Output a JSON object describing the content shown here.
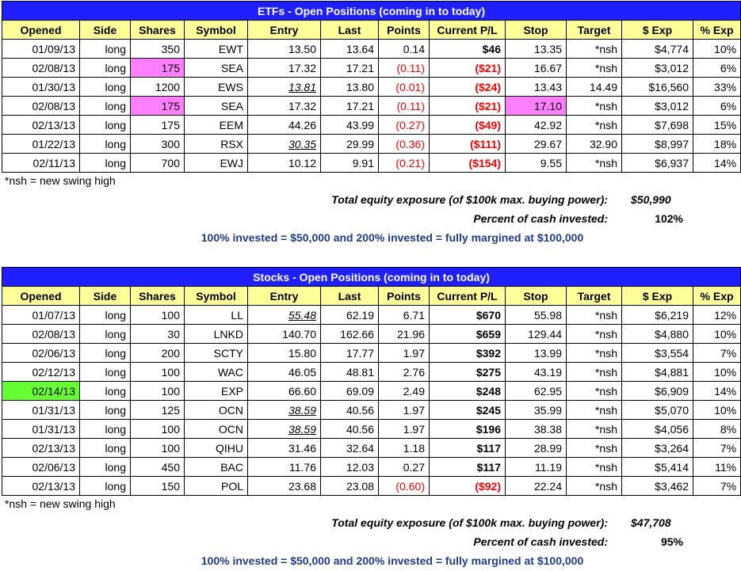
{
  "headers": [
    "Opened",
    "Side",
    "Shares",
    "Symbol",
    "Entry",
    "Last",
    "Points",
    "Current P/L",
    "Stop",
    "Target",
    "$ Exp",
    "% Exp"
  ],
  "etfs": {
    "title": "ETFs - Open Positions (coming in to today)",
    "rows": [
      [
        "01/09/13",
        "long",
        "350",
        "EWT",
        "13.50",
        "13.64",
        "0.14",
        "$46",
        "13.35",
        "*nsh",
        "$4,774",
        "10%"
      ],
      [
        "02/08/13",
        "long",
        "175",
        "SEA",
        "17.32",
        "17.21",
        "(0.11)",
        "($21)",
        "16.67",
        "*nsh",
        "$3,012",
        "6%"
      ],
      [
        "01/30/13",
        "long",
        "1200",
        "EWS",
        "13.81",
        "13.80",
        "(0.01)",
        "($24)",
        "13.43",
        "14.49",
        "$16,560",
        "33%"
      ],
      [
        "02/08/13",
        "long",
        "175",
        "SEA",
        "17.32",
        "17.21",
        "(0.11)",
        "($21)",
        "17.10",
        "*nsh",
        "$3,012",
        "6%"
      ],
      [
        "02/13/13",
        "long",
        "175",
        "EEM",
        "44.26",
        "43.99",
        "(0.27)",
        "($49)",
        "42.92",
        "*nsh",
        "$7,698",
        "15%"
      ],
      [
        "01/22/13",
        "long",
        "300",
        "RSX",
        "30.35",
        "29.99",
        "(0.36)",
        "($111)",
        "29.67",
        "32.90",
        "$8,997",
        "18%"
      ],
      [
        "02/11/13",
        "long",
        "700",
        "EWJ",
        "10.12",
        "9.91",
        "(0.21)",
        "($154)",
        "9.55",
        "*nsh",
        "$6,937",
        "14%"
      ]
    ],
    "note": "*nsh = new swing high",
    "exposure_label": "Total equity exposure (of $100k max. buying power):",
    "exposure_value": "$50,990",
    "cash_label": "Percent of cash invested:",
    "cash_value": "102%",
    "invested_note": "100% invested = $50,000 and 200% invested = fully margined at $100,000"
  },
  "stocks": {
    "title": "Stocks - Open Positions (coming in to today)",
    "rows": [
      [
        "01/07/13",
        "long",
        "100",
        "LL",
        "55.48",
        "62.19",
        "6.71",
        "$670",
        "55.98",
        "*nsh",
        "$6,219",
        "12%"
      ],
      [
        "02/08/13",
        "long",
        "30",
        "LNKD",
        "140.70",
        "162.66",
        "21.96",
        "$659",
        "129.44",
        "*nsh",
        "$4,880",
        "10%"
      ],
      [
        "02/06/13",
        "long",
        "200",
        "SCTY",
        "15.80",
        "17.77",
        "1.97",
        "$392",
        "13.99",
        "*nsh",
        "$3,554",
        "7%"
      ],
      [
        "02/12/13",
        "long",
        "100",
        "WAC",
        "46.05",
        "48.81",
        "2.76",
        "$275",
        "43.19",
        "*nsh",
        "$4,881",
        "10%"
      ],
      [
        "02/14/13",
        "long",
        "100",
        "EXP",
        "66.60",
        "69.09",
        "2.49",
        "$248",
        "62.95",
        "*nsh",
        "$6,909",
        "14%"
      ],
      [
        "01/31/13",
        "long",
        "125",
        "OCN",
        "38.59",
        "40.56",
        "1.97",
        "$245",
        "35.99",
        "*nsh",
        "$5,070",
        "10%"
      ],
      [
        "01/31/13",
        "long",
        "100",
        "OCN",
        "38.59",
        "40.56",
        "1.97",
        "$196",
        "38.38",
        "*nsh",
        "$4,056",
        "8%"
      ],
      [
        "02/13/13",
        "long",
        "100",
        "QIHU",
        "31.46",
        "32.64",
        "1.18",
        "$117",
        "28.99",
        "*nsh",
        "$3,264",
        "7%"
      ],
      [
        "02/06/13",
        "long",
        "450",
        "BAC",
        "11.76",
        "12.03",
        "0.27",
        "$117",
        "11.19",
        "*nsh",
        "$5,414",
        "11%"
      ],
      [
        "02/13/13",
        "long",
        "150",
        "POL",
        "23.68",
        "23.08",
        "(0.60)",
        "($92)",
        "22.24",
        "*nsh",
        "$3,462",
        "7%"
      ]
    ],
    "note": "*nsh = new swing high",
    "exposure_label": "Total equity exposure (of $100k max. buying power):",
    "exposure_value": "$47,708",
    "cash_label": "Percent of cash invested:",
    "cash_value": "95%",
    "invested_note": "100% invested = $50,000 and 200% invested = fully margined at $100,000"
  },
  "colors": {
    "title_bg": "#1f1fff",
    "header_bg": "#ffff99",
    "negative": "#ff0000",
    "highlight_pink": "#ff80ff",
    "highlight_green": "#66ff33",
    "note_blue": "#1f3a8a"
  }
}
